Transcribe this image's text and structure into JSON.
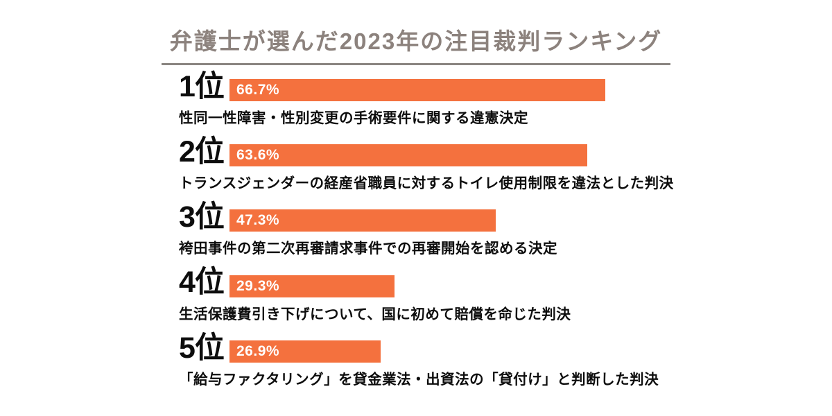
{
  "title": "弁護士が選んだ2023年の注目裁判ランキング",
  "colors": {
    "background": "#ffffff",
    "bar": "#f4713e",
    "title_text": "#8c827d",
    "title_underline": "#8a8581",
    "rank_text": "#0d0d0d",
    "description_text": "#0d0d0d",
    "percent_label": "#ffffff"
  },
  "chart_data": {
    "type": "bar",
    "orientation": "horizontal",
    "title": "弁護士が選んだ2023年の注目裁判ランキング",
    "categories": [
      "性同一性障害・性別変更の手術要件に関する違憲決定",
      "トランスジェンダーの経産省職員に対するトイレ使用制限を違法とした判決",
      "袴田事件の第二次再審請求事件での再審開始を認める決定",
      "生活保護費引き下げについて、国に初めて賠償を命じた判決",
      "「給与ファクタリング」を貸金業法・出資法の「貸付け」と判断した判決"
    ],
    "values": [
      66.7,
      63.6,
      47.3,
      29.3,
      26.9
    ],
    "value_labels": [
      "66.7%",
      "63.6%",
      "47.3%",
      "29.3%",
      "26.9%"
    ],
    "rank_labels": [
      "1位",
      "2位",
      "3位",
      "4位",
      "5位"
    ],
    "value_unit": "%",
    "xlim": [
      0,
      100
    ],
    "grid": false,
    "legend": false
  },
  "rows": [
    {
      "rank": "1位",
      "percent": "66.7%",
      "value": 66.7,
      "description": "性同一性障害・性別変更の手術要件に関する違憲決定"
    },
    {
      "rank": "2位",
      "percent": "63.6%",
      "value": 63.6,
      "description": "トランスジェンダーの経産省職員に対するトイレ使用制限を違法とした判決"
    },
    {
      "rank": "3位",
      "percent": "47.3%",
      "value": 47.3,
      "description": "袴田事件の第二次再審請求事件での再審開始を認める決定"
    },
    {
      "rank": "4位",
      "percent": "29.3%",
      "value": 29.3,
      "description": "生活保護費引き下げについて、国に初めて賠償を命じた判決"
    },
    {
      "rank": "5位",
      "percent": "26.9%",
      "value": 26.9,
      "description": "「給与ファクタリング」を貸金業法・出資法の「貸付け」と判断した判決"
    }
  ]
}
